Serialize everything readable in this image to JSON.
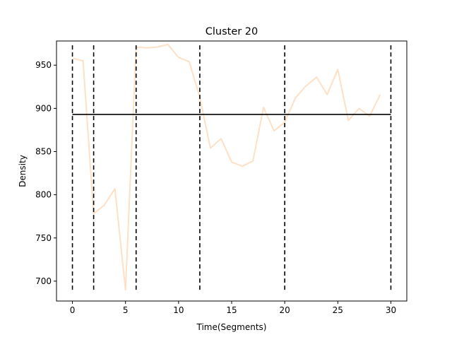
{
  "chart_data": {
    "type": "line",
    "title": "Cluster 20",
    "xlabel": "Time(Segments)",
    "ylabel": "Density",
    "xlim": [
      -1.5,
      31.5
    ],
    "ylim": [
      677,
      978
    ],
    "x_ticks": [
      0,
      5,
      10,
      15,
      20,
      25,
      30
    ],
    "y_ticks": [
      700,
      750,
      800,
      850,
      900,
      950
    ],
    "grid": false,
    "series": [
      {
        "color": "#fde0c5",
        "x": [
          0,
          1,
          2,
          3,
          4,
          5,
          6,
          7,
          8,
          9,
          10,
          11,
          12,
          13,
          14,
          15,
          16,
          17,
          18,
          19,
          20,
          21,
          22,
          23,
          24,
          25,
          26,
          27,
          28,
          29
        ],
        "y": [
          958,
          955,
          778,
          788,
          807,
          690,
          971,
          970,
          971,
          974,
          959,
          954,
          913,
          854,
          865,
          838,
          833,
          839,
          901,
          874,
          884,
          912,
          926,
          936,
          916,
          945,
          886,
          900,
          891,
          916
        ]
      }
    ],
    "mean_line": {
      "value": 893,
      "x_start": 0,
      "x_end": 30,
      "color": "#000000"
    },
    "segment_boundaries": {
      "x": [
        0,
        2,
        6,
        12,
        20,
        30
      ],
      "y_range": [
        690,
        974
      ],
      "style": "dashed",
      "color": "#000000"
    }
  }
}
